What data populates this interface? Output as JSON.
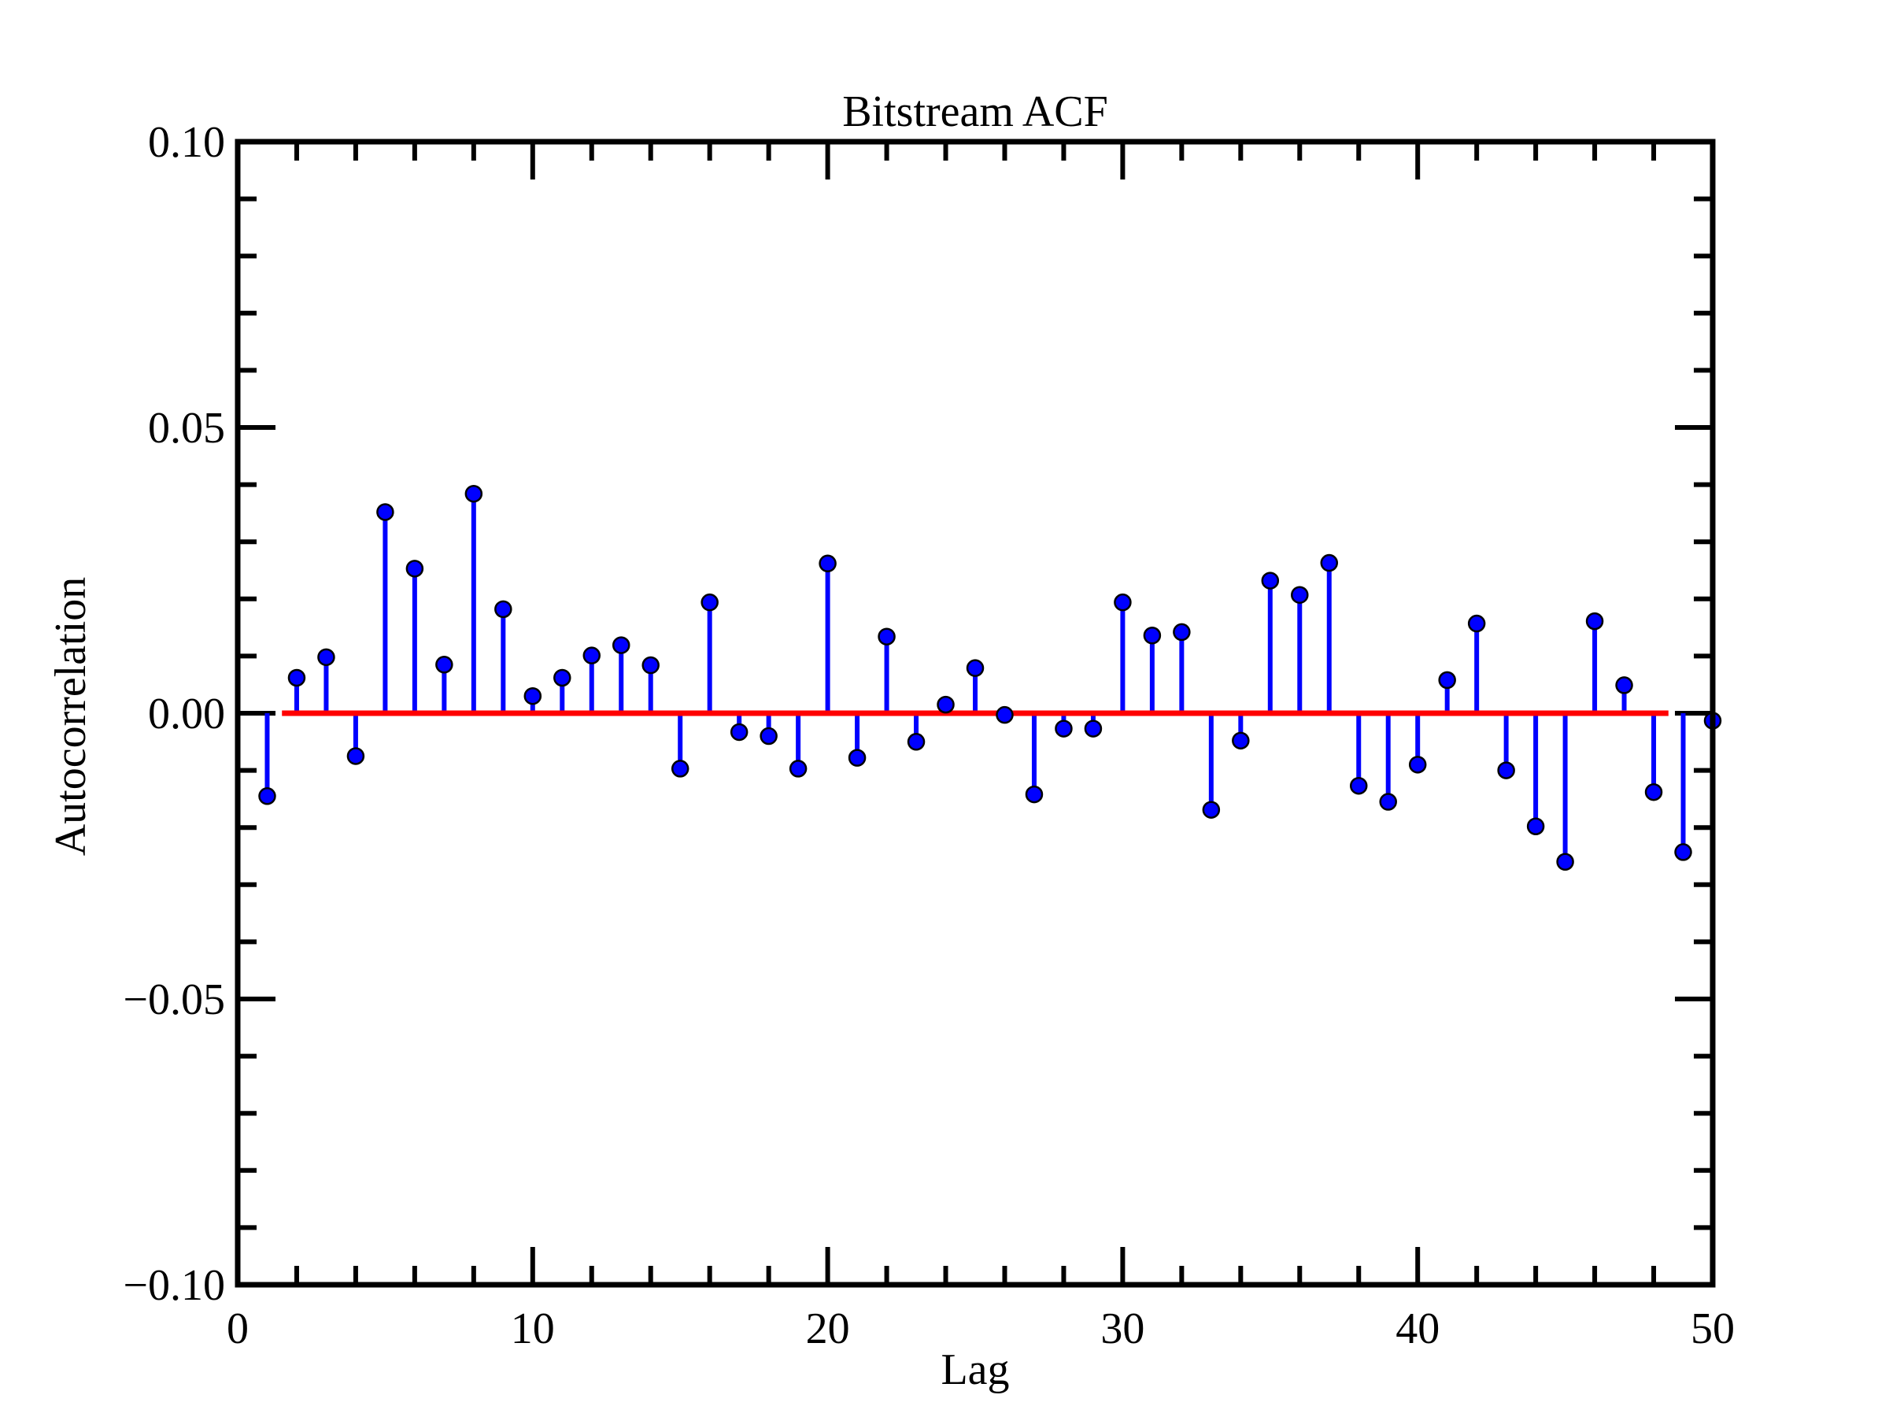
{
  "chart_data": {
    "type": "stem",
    "title": "Bitstream ACF",
    "xlabel": "Lag",
    "ylabel": "Autocorrelation",
    "xlim": [
      0,
      50
    ],
    "ylim": [
      -0.1,
      0.1
    ],
    "xticks": [
      0,
      10,
      20,
      30,
      40,
      50
    ],
    "xtick_labels": [
      "0",
      "10",
      "20",
      "30",
      "40",
      "50"
    ],
    "yticks": [
      0.1,
      0.05,
      0.0,
      -0.05,
      -0.1
    ],
    "ytick_labels": [
      "0.10",
      "0.05",
      "0.00",
      "−0.05",
      "−0.10"
    ],
    "grid": false,
    "legend": "none",
    "colors": {
      "stem": "#0000ff",
      "baseline": "#ff0000",
      "marker_edge": "#000000",
      "axes": "#000000"
    },
    "baseline": {
      "y": 0.0,
      "x_start": 1.5,
      "x_end": 48.5
    },
    "lags": [
      1,
      2,
      3,
      4,
      5,
      6,
      7,
      8,
      9,
      10,
      11,
      12,
      13,
      14,
      15,
      16,
      17,
      18,
      19,
      20,
      21,
      22,
      23,
      24,
      25,
      26,
      27,
      28,
      29,
      30,
      31,
      32,
      33,
      34,
      35,
      36,
      37,
      38,
      39,
      40,
      41,
      42,
      43,
      44,
      45,
      46,
      47,
      48,
      49,
      50
    ],
    "values": [
      -0.0145,
      0.0062,
      0.0098,
      -0.0075,
      0.0352,
      0.0253,
      0.0085,
      0.0384,
      0.0182,
      0.003,
      0.0062,
      0.0101,
      0.0119,
      0.0084,
      -0.0097,
      0.0194,
      -0.0033,
      -0.004,
      -0.0097,
      0.0262,
      -0.0078,
      0.0134,
      -0.005,
      0.0015,
      0.0079,
      -0.0003,
      -0.0142,
      -0.0027,
      -0.0027,
      0.0194,
      0.0136,
      0.0142,
      -0.0169,
      -0.0048,
      0.0232,
      0.0207,
      0.0263,
      -0.0127,
      -0.0155,
      -0.009,
      0.0058,
      0.0157,
      -0.01,
      -0.0198,
      -0.026,
      0.0161,
      0.0049,
      -0.0138,
      -0.0243,
      -0.0013
    ]
  }
}
